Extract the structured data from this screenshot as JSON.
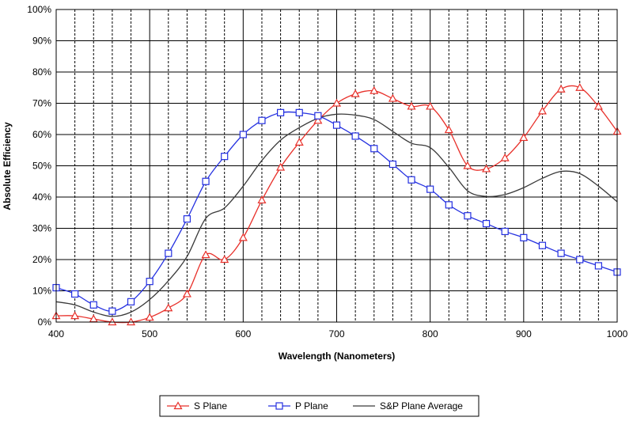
{
  "chart_data": {
    "type": "line",
    "title": "",
    "xlabel": "Wavelength (Nanometers)",
    "ylabel": "Absolute Efficiency",
    "xlim": [
      400,
      1000
    ],
    "ylim": [
      0,
      100
    ],
    "x_ticks": [
      400,
      500,
      600,
      700,
      800,
      900,
      1000
    ],
    "y_ticks": [
      0,
      10,
      20,
      30,
      40,
      50,
      60,
      70,
      80,
      90,
      100
    ],
    "y_tick_labels": [
      "0%",
      "10%",
      "20%",
      "30%",
      "40%",
      "50%",
      "60%",
      "70%",
      "80%",
      "90%",
      "100%"
    ],
    "grid": true,
    "legend_position": "bottom",
    "series": [
      {
        "name": "S Plane",
        "color": "#e8302a",
        "marker": "triangle",
        "x": [
          400,
          420,
          440,
          460,
          480,
          500,
          520,
          540,
          560,
          580,
          600,
          620,
          640,
          660,
          680,
          700,
          720,
          740,
          760,
          780,
          800,
          820,
          840,
          860,
          880,
          900,
          920,
          940,
          960,
          980,
          1000
        ],
        "values": [
          2,
          2,
          1,
          0,
          0,
          1.5,
          4.5,
          9,
          21.5,
          20,
          27,
          39,
          49.5,
          57.5,
          64.5,
          70,
          73,
          74,
          71.5,
          69,
          69,
          61.5,
          50,
          49,
          52.5,
          59,
          67.5,
          74.5,
          75,
          69,
          61
        ]
      },
      {
        "name": "P Plane",
        "color": "#2430e0",
        "marker": "square",
        "x": [
          400,
          420,
          440,
          460,
          480,
          500,
          520,
          540,
          560,
          580,
          600,
          620,
          640,
          660,
          680,
          700,
          720,
          740,
          760,
          780,
          800,
          820,
          840,
          860,
          880,
          900,
          920,
          940,
          960,
          980,
          1000
        ],
        "values": [
          11,
          9,
          5.5,
          3.5,
          6.5,
          13,
          22,
          33,
          45,
          53,
          60,
          64.5,
          67,
          67,
          66,
          63,
          59.5,
          55.5,
          50.5,
          45.5,
          42.5,
          37.5,
          34,
          31.5,
          29,
          27,
          24.5,
          22,
          20,
          18,
          16
        ]
      },
      {
        "name": "S&P Plane Average",
        "color": "#3a3a3a",
        "marker": "none",
        "x": [
          400,
          420,
          440,
          460,
          480,
          500,
          520,
          540,
          560,
          580,
          600,
          620,
          640,
          660,
          680,
          700,
          720,
          740,
          760,
          780,
          800,
          820,
          840,
          860,
          880,
          900,
          920,
          940,
          960,
          980,
          1000
        ],
        "values": [
          6.5,
          5.5,
          3.2,
          1.8,
          3.2,
          7.2,
          13.2,
          21,
          33.2,
          36.5,
          43.5,
          51.7,
          58.2,
          62.2,
          65.2,
          66.5,
          66.2,
          64.8,
          61,
          57.2,
          55.8,
          49.5,
          42,
          40.2,
          40.8,
          43,
          46,
          48.2,
          47.5,
          43.5,
          38.5
        ]
      }
    ]
  }
}
